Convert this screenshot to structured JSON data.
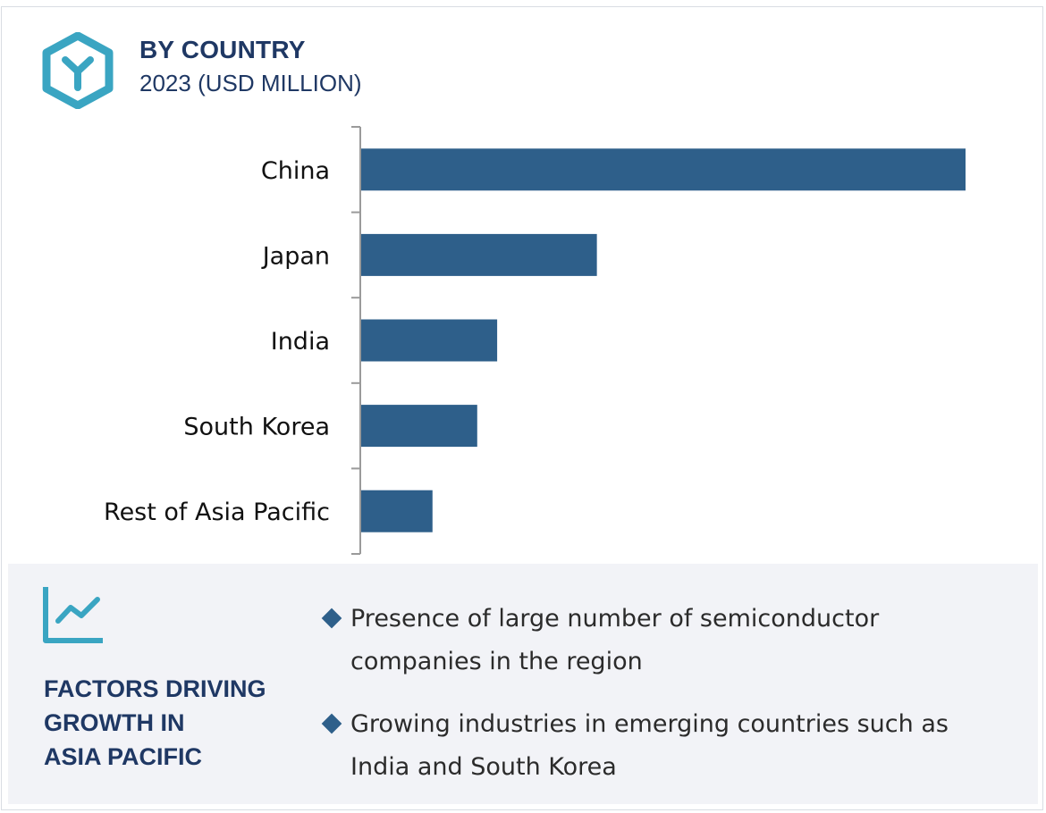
{
  "header": {
    "title": "BY COUNTRY",
    "subtitle": "2023 (USD MILLION)",
    "logo_icon": "hexagon-y-logo-icon"
  },
  "colors": {
    "bar": "#2e5f8a",
    "title": "#1f3864",
    "accent": "#3aa5c2",
    "footer_bg": "#f2f3f7"
  },
  "chart_data": {
    "type": "bar",
    "orientation": "horizontal",
    "title": "BY COUNTRY",
    "subtitle": "2023 (USD MILLION)",
    "categories": [
      "China",
      "Japan",
      "India",
      "South Korea",
      "Rest of Asia Pacific"
    ],
    "values": [
      100,
      39,
      22.5,
      19.2,
      11.8
    ],
    "xlim": [
      0,
      100
    ],
    "axis_ticks_shown": false,
    "grid": false,
    "legend": "none"
  },
  "footer": {
    "icon": "trend-chart-icon",
    "heading_lines": [
      "FACTORS DRIVING",
      "GROWTH IN",
      "ASIA PACIFIC"
    ],
    "bullets": [
      "Presence of large number of semiconductor companies in the region",
      "Growing industries in emerging countries such as India and South Korea"
    ]
  }
}
